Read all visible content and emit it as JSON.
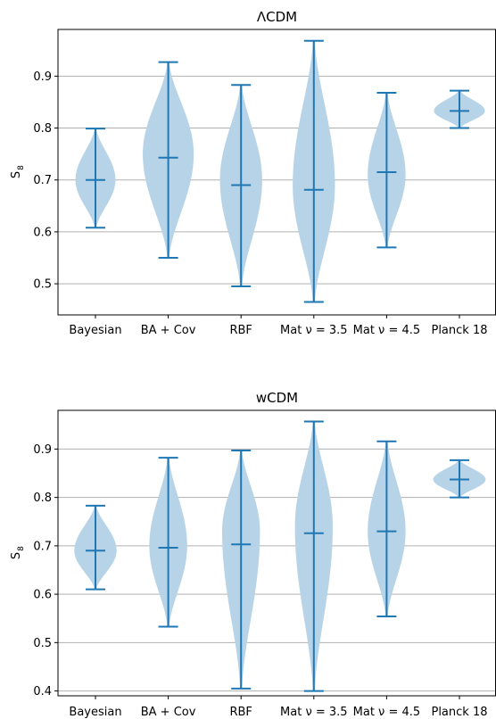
{
  "chart_data": [
    {
      "type": "violin",
      "title": "ΛCDM",
      "ylabel": "S",
      "ylabel_subscript": "8",
      "categories": [
        "Bayesian",
        "BA + Cov",
        "RBF",
        "Mat ν = 3.5",
        "Mat ν = 4.5",
        "Planck 18"
      ],
      "ylim": [
        0.44,
        0.99
      ],
      "yticks": [
        "0.5",
        "0.6",
        "0.7",
        "0.8",
        "0.9"
      ],
      "grid": "horizontal",
      "violins": [
        {
          "min": 0.608,
          "median": 0.7,
          "max": 0.799,
          "mode": 0.7,
          "width": 0.55
        },
        {
          "min": 0.55,
          "median": 0.743,
          "max": 0.927,
          "mode": 0.75,
          "width": 0.7
        },
        {
          "min": 0.495,
          "median": 0.69,
          "max": 0.883,
          "mode": 0.7,
          "width": 0.58
        },
        {
          "min": 0.465,
          "median": 0.681,
          "max": 0.968,
          "mode": 0.69,
          "width": 0.58
        },
        {
          "min": 0.57,
          "median": 0.715,
          "max": 0.868,
          "mode": 0.71,
          "width": 0.52
        },
        {
          "min": 0.8,
          "median": 0.833,
          "max": 0.872,
          "mode": 0.833,
          "width": 0.7
        }
      ],
      "color": "#1f77b4",
      "fill_color": "#b7d3e8"
    },
    {
      "type": "violin",
      "title": "wCDM",
      "ylabel": "S",
      "ylabel_subscript": "8",
      "categories": [
        "Bayesian",
        "BA + Cov",
        "RBF",
        "Mat ν = 3.5",
        "Mat ν = 4.5",
        "Planck 18"
      ],
      "ylim": [
        0.39,
        0.98
      ],
      "yticks": [
        "0.4",
        "0.5",
        "0.6",
        "0.7",
        "0.8",
        "0.9"
      ],
      "grid": "horizontal",
      "violins": [
        {
          "min": 0.61,
          "median": 0.69,
          "max": 0.783,
          "mode": 0.69,
          "width": 0.58
        },
        {
          "min": 0.533,
          "median": 0.696,
          "max": 0.882,
          "mode": 0.7,
          "width": 0.52
        },
        {
          "min": 0.405,
          "median": 0.703,
          "max": 0.897,
          "mode": 0.73,
          "width": 0.52
        },
        {
          "min": 0.4,
          "median": 0.726,
          "max": 0.957,
          "mode": 0.74,
          "width": 0.52
        },
        {
          "min": 0.554,
          "median": 0.73,
          "max": 0.916,
          "mode": 0.73,
          "width": 0.52
        },
        {
          "min": 0.8,
          "median": 0.837,
          "max": 0.877,
          "mode": 0.837,
          "width": 0.72
        }
      ],
      "color": "#1f77b4",
      "fill_color": "#b7d3e8"
    }
  ]
}
